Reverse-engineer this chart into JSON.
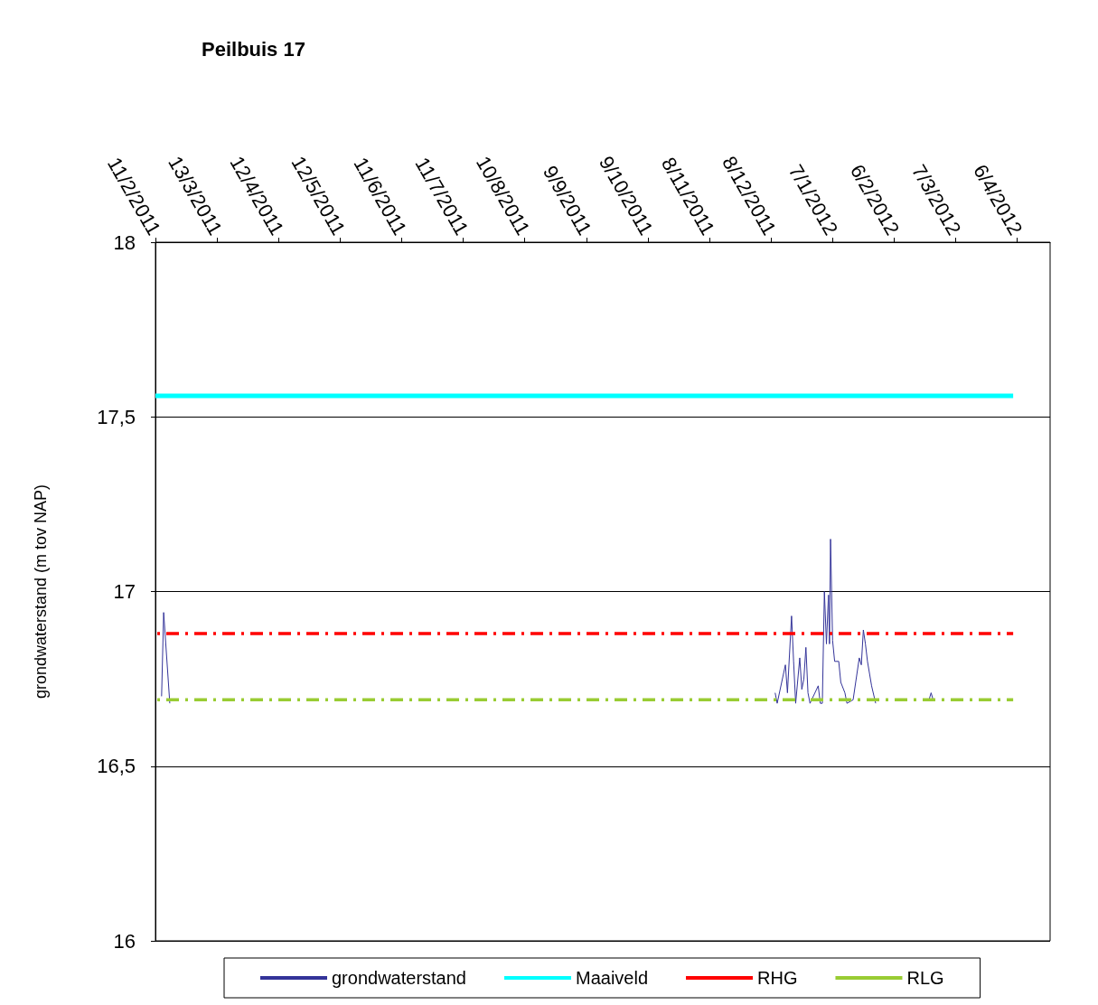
{
  "chart_data": {
    "type": "line",
    "title": "Peilbuis 17",
    "ylabel": "grondwaterstand (m tov NAP)",
    "xlim": [
      "2011-02-11",
      "2012-04-22"
    ],
    "xticks": [
      {
        "value": "2011-02-11",
        "label": "11/2/2011"
      },
      {
        "value": "2011-03-13",
        "label": "13/3/2011"
      },
      {
        "value": "2011-04-12",
        "label": "12/4/2011"
      },
      {
        "value": "2011-05-12",
        "label": "12/5/2011"
      },
      {
        "value": "2011-06-11",
        "label": "11/6/2011"
      },
      {
        "value": "2011-07-11",
        "label": "11/7/2011"
      },
      {
        "value": "2011-08-10",
        "label": "10/8/2011"
      },
      {
        "value": "2011-09-09",
        "label": "9/9/2011"
      },
      {
        "value": "2011-10-09",
        "label": "9/10/2011"
      },
      {
        "value": "2011-11-08",
        "label": "8/11/2011"
      },
      {
        "value": "2011-12-08",
        "label": "8/12/2011"
      },
      {
        "value": "2012-01-07",
        "label": "7/1/2012"
      },
      {
        "value": "2012-02-06",
        "label": "6/2/2012"
      },
      {
        "value": "2012-03-07",
        "label": "7/3/2012"
      },
      {
        "value": "2012-04-06",
        "label": "6/4/2012"
      }
    ],
    "ylim": [
      16,
      18
    ],
    "yticks": [
      16,
      {
        "value": 16.5,
        "label": "16,5"
      },
      17,
      {
        "value": 17.5,
        "label": "17,5"
      },
      18
    ],
    "grid": "y",
    "legend": "bottom",
    "marker": "none",
    "series": [
      {
        "name": "grondwaterstand",
        "color": "#333399",
        "line_style": "solid",
        "x": [
          "2011-02-14",
          "2011-02-15",
          "2011-02-18",
          "2011-06-01",
          "2011-12-10",
          "2011-12-11",
          "2011-12-15",
          "2011-12-16",
          "2011-12-18",
          "2011-12-19",
          "2011-12-20",
          "2011-12-22",
          "2011-12-23",
          "2011-12-24",
          "2011-12-25",
          "2011-12-26",
          "2011-12-27",
          "2011-12-31",
          "2012-01-01",
          "2012-01-02",
          "2012-01-03",
          "2012-01-04",
          "2012-01-05",
          "2012-01-05T12:00",
          "2012-01-06",
          "2012-01-07",
          "2012-01-08",
          "2012-01-10",
          "2012-01-11",
          "2012-01-13",
          "2012-01-14",
          "2012-01-17",
          "2012-01-20",
          "2012-01-21",
          "2012-01-22",
          "2012-01-23",
          "2012-01-24",
          "2012-01-26",
          "2012-01-28",
          "2012-02-10",
          "2012-02-23",
          "2012-02-24",
          "2012-02-25"
        ],
        "values": [
          16.7,
          16.94,
          16.68,
          null,
          16.71,
          16.68,
          16.79,
          16.71,
          16.93,
          16.8,
          16.68,
          16.81,
          16.72,
          16.75,
          16.84,
          16.71,
          16.68,
          16.73,
          16.68,
          16.68,
          17.0,
          16.85,
          16.99,
          16.85,
          17.15,
          16.86,
          16.8,
          16.8,
          16.74,
          16.71,
          16.68,
          16.69,
          16.81,
          16.79,
          16.89,
          16.85,
          16.8,
          16.73,
          16.68,
          null,
          16.69,
          16.71,
          16.69
        ]
      },
      {
        "name": "Maaiveld",
        "color": "#00ffff",
        "line_style": "solid",
        "x": [
          "2011-02-11",
          "2012-04-04"
        ],
        "values": [
          17.56,
          17.56
        ]
      },
      {
        "name": "RHG",
        "color": "#ff0000",
        "line_style": "dashed",
        "x": [
          "2011-02-11",
          "2012-04-04"
        ],
        "values": [
          16.88,
          16.88
        ]
      },
      {
        "name": "RLG",
        "color": "#99cc33",
        "line_style": "dashed",
        "x": [
          "2011-02-11",
          "2012-04-04"
        ],
        "values": [
          16.69,
          16.69
        ]
      }
    ]
  }
}
